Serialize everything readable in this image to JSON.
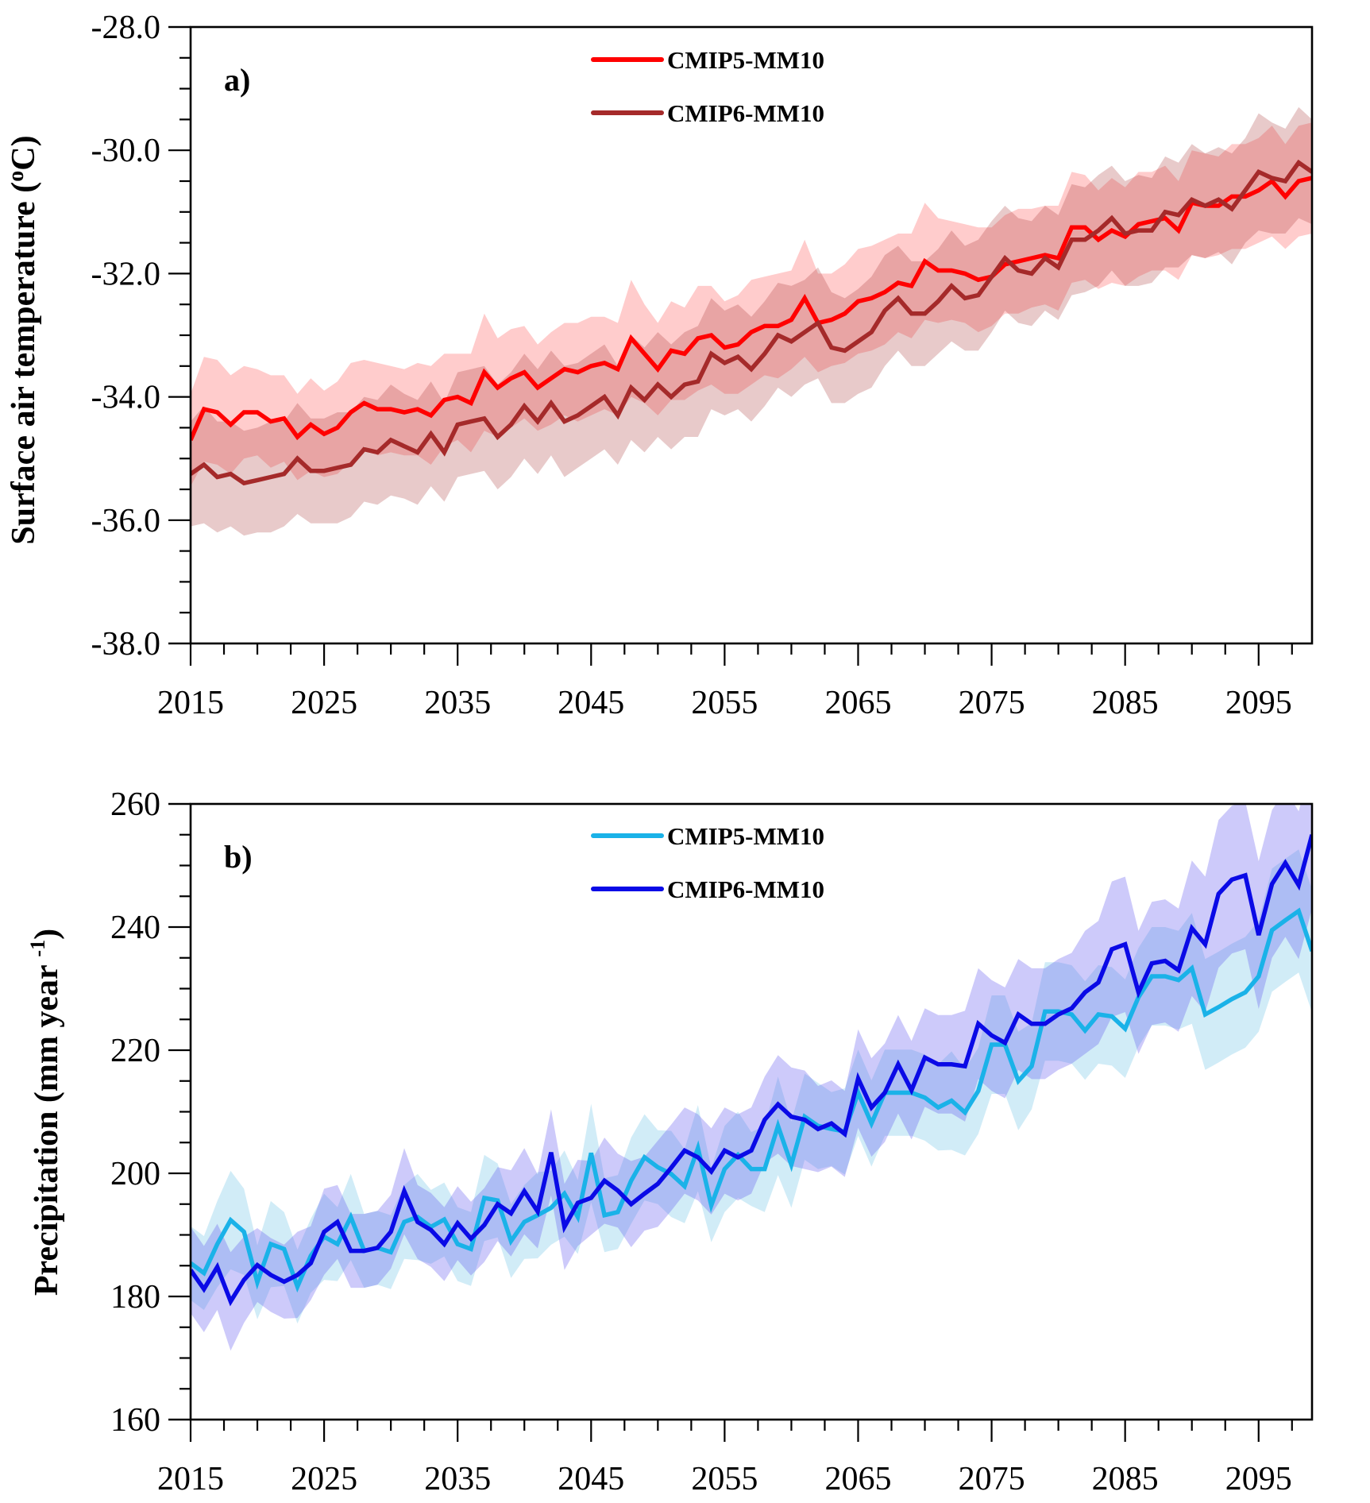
{
  "chart_data": [
    {
      "type": "line",
      "panel_label": "a)",
      "ylabel": "Surface air temperature (°C)",
      "ylabel_parts": {
        "main": "Surface air temperature (",
        "sup": "o",
        "tail": "C)"
      },
      "xlabel": "",
      "xlim": [
        2015,
        2099
      ],
      "ylim": [
        -38.0,
        -28.0
      ],
      "x_ticks": [
        2015,
        2025,
        2035,
        2045,
        2055,
        2065,
        2075,
        2085,
        2095
      ],
      "x_tick_labels": [
        "2015",
        "2025",
        "2035",
        "2045",
        "2055",
        "2065",
        "2075",
        "2085",
        "2095"
      ],
      "x_minor_step": 2.5,
      "y_ticks": [
        -38.0,
        -36.0,
        -34.0,
        -32.0,
        -30.0,
        -28.0
      ],
      "y_tick_labels": [
        "-38.0",
        "-36.0",
        "-34.0",
        "-32.0",
        "-30.0",
        "-28.0"
      ],
      "y_minor_step": 0.5,
      "grid": false,
      "legend_position": "top-center",
      "x_start": 2015,
      "series": [
        {
          "name": "CMIP5-MM10",
          "color": "#ff0000",
          "band_color": "#ff0000",
          "band_opacity": 0.2,
          "values": [
            -34.7,
            -34.2,
            -34.25,
            -34.45,
            -34.25,
            -34.25,
            -34.4,
            -34.35,
            -34.65,
            -34.45,
            -34.6,
            -34.5,
            -34.25,
            -34.1,
            -34.2,
            -34.2,
            -34.25,
            -34.2,
            -34.3,
            -34.05,
            -34.0,
            -34.1,
            -33.6,
            -33.85,
            -33.7,
            -33.6,
            -33.85,
            -33.7,
            -33.55,
            -33.6,
            -33.5,
            -33.45,
            -33.55,
            -33.05,
            -33.3,
            -33.55,
            -33.25,
            -33.3,
            -33.05,
            -33.0,
            -33.2,
            -33.15,
            -32.95,
            -32.85,
            -32.85,
            -32.75,
            -32.4,
            -32.8,
            -32.75,
            -32.65,
            -32.45,
            -32.4,
            -32.3,
            -32.15,
            -32.2,
            -31.8,
            -31.95,
            -31.95,
            -32.0,
            -32.1,
            -32.05,
            -31.85,
            -31.8,
            -31.75,
            -31.7,
            -31.75,
            -31.25,
            -31.25,
            -31.45,
            -31.3,
            -31.4,
            -31.2,
            -31.15,
            -31.1,
            -31.3,
            -30.85,
            -30.9,
            -30.9,
            -30.75,
            -30.75,
            -30.65,
            -30.5,
            -30.75,
            -30.5,
            -30.45
          ],
          "spread": [
            0.75,
            0.85,
            0.85,
            0.8,
            0.75,
            0.7,
            0.75,
            0.7,
            0.7,
            0.75,
            0.7,
            0.75,
            0.8,
            0.7,
            0.75,
            0.7,
            0.7,
            0.75,
            0.8,
            0.75,
            0.7,
            0.8,
            0.95,
            0.8,
            0.8,
            0.75,
            0.7,
            0.75,
            0.75,
            0.8,
            0.8,
            0.75,
            0.75,
            0.95,
            0.8,
            0.75,
            0.8,
            0.75,
            0.85,
            0.8,
            0.75,
            0.8,
            0.85,
            0.8,
            0.85,
            0.8,
            0.95,
            0.8,
            0.75,
            0.8,
            0.85,
            0.85,
            0.85,
            0.8,
            0.85,
            0.95,
            0.85,
            0.8,
            0.8,
            0.85,
            0.8,
            0.8,
            0.85,
            0.8,
            0.8,
            0.85,
            0.9,
            0.85,
            0.8,
            0.85,
            0.8,
            0.85,
            0.8,
            0.85,
            0.8,
            0.85,
            0.85,
            0.8,
            0.85,
            0.85,
            0.85,
            0.9,
            0.85,
            0.9,
            0.9
          ]
        },
        {
          "name": "CMIP6-MM10",
          "color": "#a52a2a",
          "band_color": "#a52a2a",
          "band_opacity": 0.25,
          "values": [
            -35.25,
            -35.1,
            -35.3,
            -35.25,
            -35.4,
            -35.35,
            -35.3,
            -35.25,
            -35.0,
            -35.2,
            -35.2,
            -35.15,
            -35.1,
            -34.85,
            -34.9,
            -34.7,
            -34.8,
            -34.9,
            -34.6,
            -34.9,
            -34.45,
            -34.4,
            -34.35,
            -34.65,
            -34.45,
            -34.15,
            -34.4,
            -34.1,
            -34.4,
            -34.3,
            -34.15,
            -34.0,
            -34.3,
            -33.85,
            -34.05,
            -33.8,
            -34.0,
            -33.8,
            -33.75,
            -33.3,
            -33.45,
            -33.35,
            -33.55,
            -33.3,
            -33.0,
            -33.1,
            -32.95,
            -32.8,
            -33.2,
            -33.25,
            -33.1,
            -32.95,
            -32.6,
            -32.4,
            -32.65,
            -32.65,
            -32.45,
            -32.2,
            -32.4,
            -32.35,
            -32.05,
            -31.75,
            -31.95,
            -32.0,
            -31.75,
            -31.9,
            -31.45,
            -31.45,
            -31.3,
            -31.1,
            -31.35,
            -31.3,
            -31.3,
            -31.0,
            -31.05,
            -30.8,
            -30.9,
            -30.8,
            -30.95,
            -30.65,
            -30.35,
            -30.45,
            -30.5,
            -30.2,
            -30.35
          ],
          "spread": [
            0.85,
            0.95,
            0.9,
            0.85,
            0.85,
            0.85,
            0.9,
            0.85,
            0.9,
            0.85,
            0.85,
            0.9,
            0.85,
            0.85,
            0.85,
            0.9,
            0.85,
            0.85,
            0.85,
            0.8,
            0.85,
            0.85,
            0.85,
            0.85,
            0.85,
            0.85,
            0.85,
            0.85,
            0.9,
            0.85,
            0.85,
            0.85,
            0.8,
            0.85,
            0.85,
            0.85,
            0.85,
            0.85,
            0.9,
            0.9,
            0.85,
            0.85,
            0.85,
            0.85,
            0.85,
            0.9,
            0.85,
            0.9,
            0.9,
            0.85,
            0.85,
            0.9,
            0.9,
            0.85,
            0.85,
            0.85,
            0.85,
            0.9,
            0.85,
            0.9,
            0.9,
            0.85,
            0.85,
            0.85,
            0.85,
            0.85,
            0.9,
            0.85,
            0.9,
            0.85,
            0.85,
            0.9,
            0.85,
            0.9,
            0.85,
            0.9,
            0.85,
            0.85,
            0.9,
            0.85,
            0.95,
            0.9,
            0.85,
            0.9,
            0.85
          ]
        }
      ]
    },
    {
      "type": "line",
      "panel_label": "b)",
      "ylabel": "Precipitation (mm year -1)",
      "ylabel_parts": {
        "main": "Precipitation (mm year ",
        "sup": "-1",
        "tail": ")"
      },
      "xlabel": "",
      "xlim": [
        2015,
        2099
      ],
      "ylim": [
        160,
        260
      ],
      "x_ticks": [
        2015,
        2025,
        2035,
        2045,
        2055,
        2065,
        2075,
        2085,
        2095
      ],
      "x_tick_labels": [
        "2015",
        "2025",
        "2035",
        "2045",
        "2055",
        "2065",
        "2075",
        "2085",
        "2095"
      ],
      "x_minor_step": 2.5,
      "y_ticks": [
        160,
        180,
        200,
        220,
        240,
        260
      ],
      "y_tick_labels": [
        "160",
        "180",
        "200",
        "220",
        "240",
        "260"
      ],
      "y_minor_step": 5,
      "grid": false,
      "legend_position": "top-center",
      "x_start": 2015,
      "series": [
        {
          "name": "CMIP5-MM10",
          "color": "#1ab2e8",
          "band_color": "#48b4e0",
          "band_opacity": 0.25,
          "values": [
            185.4,
            183.8,
            188.5,
            192.4,
            190.5,
            182.3,
            188.5,
            187.7,
            181.6,
            186.6,
            189.7,
            188.5,
            192.9,
            187.4,
            187.9,
            187.2,
            192.1,
            192.9,
            191.3,
            192.5,
            188.5,
            187.7,
            196.0,
            195.6,
            189.0,
            192.1,
            193.2,
            194.4,
            196.7,
            192.9,
            203.3,
            193.2,
            193.7,
            198.8,
            202.6,
            201.0,
            199.9,
            197.9,
            204.1,
            194.8,
            200.7,
            203.0,
            200.7,
            200.7,
            207.7,
            201.4,
            209.2,
            207.7,
            207.2,
            206.8,
            213.1,
            208.1,
            213.1,
            213.1,
            213.1,
            212.3,
            210.7,
            211.8,
            209.9,
            213.4,
            220.9,
            220.9,
            215.0,
            217.4,
            226.3,
            226.3,
            225.8,
            223.2,
            225.8,
            225.5,
            223.5,
            228.6,
            232.0,
            232.0,
            231.4,
            233.3,
            225.8,
            227.0,
            228.3,
            229.4,
            232.0,
            239.5,
            241.1,
            242.6,
            236.1
          ],
          "spread": [
            6,
            6,
            7,
            8,
            7,
            6,
            7,
            6,
            6,
            6,
            7,
            6,
            7,
            6,
            6,
            6,
            6,
            7,
            6,
            6,
            6,
            6,
            7,
            6,
            6,
            6,
            7,
            6,
            7,
            6,
            8,
            6,
            6,
            7,
            7,
            6,
            7,
            6,
            7,
            6,
            7,
            7,
            6,
            7,
            8,
            7,
            7,
            7,
            6,
            7,
            7,
            7,
            7,
            7,
            7,
            7,
            7,
            8,
            7,
            7,
            8,
            8,
            8,
            7,
            8,
            8,
            8,
            8,
            8,
            8,
            8,
            8,
            8,
            8,
            8,
            9,
            9,
            9,
            9,
            9,
            9,
            10,
            10,
            10,
            10
          ]
        },
        {
          "name": "CMIP6-MM10",
          "color": "#0a0ae6",
          "band_color": "#5a50f0",
          "band_opacity": 0.3,
          "values": [
            184.3,
            181.2,
            184.8,
            179.2,
            182.7,
            185.1,
            183.5,
            182.4,
            183.5,
            185.4,
            190.5,
            192.1,
            187.4,
            187.4,
            187.9,
            190.5,
            197.1,
            192.1,
            190.8,
            188.5,
            191.9,
            189.4,
            191.6,
            195.0,
            193.5,
            197.1,
            193.8,
            203.4,
            191.3,
            195.2,
            196.0,
            198.8,
            197.2,
            195.0,
            196.7,
            198.3,
            200.9,
            203.7,
            202.6,
            200.3,
            203.7,
            202.6,
            203.7,
            208.7,
            211.2,
            209.2,
            208.7,
            207.2,
            208.1,
            206.4,
            215.4,
            210.7,
            213.1,
            217.7,
            213.5,
            218.8,
            217.7,
            217.7,
            217.4,
            224.3,
            222.4,
            221.2,
            225.8,
            224.3,
            224.3,
            225.8,
            226.8,
            229.4,
            231.0,
            236.4,
            237.2,
            229.4,
            234.1,
            234.5,
            233.0,
            239.8,
            237.2,
            245.4,
            247.7,
            248.4,
            238.7,
            247.0,
            250.4,
            246.8,
            255.0
          ],
          "spread": [
            7,
            7,
            7,
            8,
            7,
            6,
            6,
            6,
            7,
            6,
            7,
            6,
            6,
            6,
            6,
            6,
            7,
            6,
            6,
            6,
            6,
            6,
            6,
            6,
            7,
            7,
            6,
            7,
            7,
            7,
            6,
            7,
            6,
            7,
            6,
            7,
            7,
            7,
            7,
            7,
            7,
            7,
            7,
            7,
            8,
            8,
            8,
            7,
            7,
            7,
            8,
            8,
            8,
            8,
            8,
            8,
            8,
            8,
            9,
            9,
            9,
            9,
            9,
            9,
            9,
            9,
            9,
            10,
            10,
            11,
            11,
            10,
            10,
            10,
            10,
            11,
            11,
            12,
            12,
            12,
            12,
            12,
            12,
            12,
            12
          ]
        }
      ]
    }
  ]
}
